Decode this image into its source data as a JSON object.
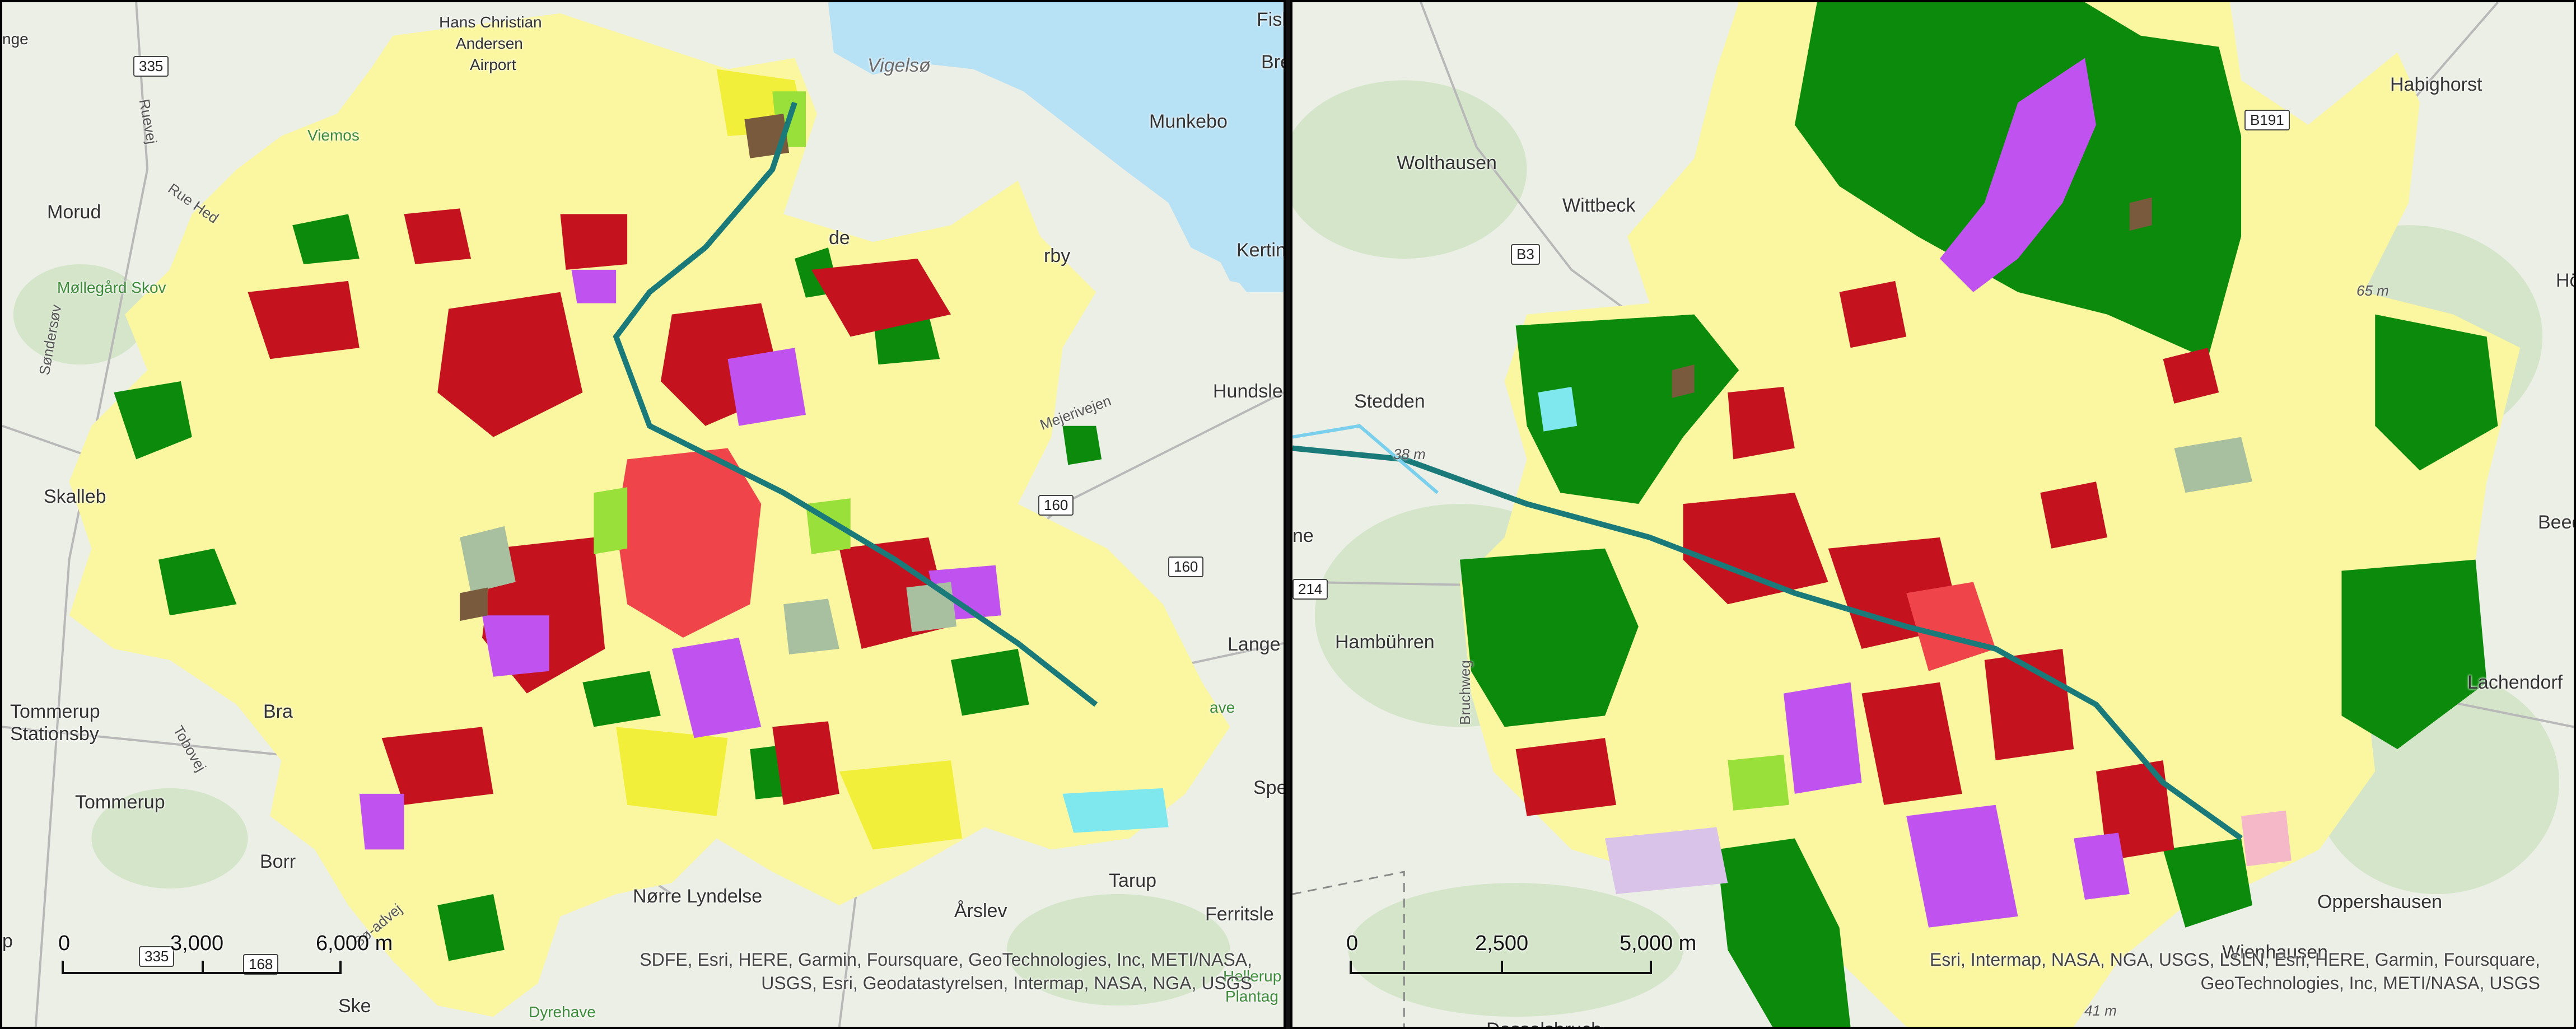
{
  "left_map": {
    "places": {
      "nge": "nge",
      "hca_airport_1": "Hans Christian",
      "hca_airport_2": "Andersen",
      "hca_airport_3": "Airport",
      "vigelso": "Vigelsø",
      "fisk": "Fisk",
      "bre": "Bre",
      "munkebo": "Munkebo",
      "ruevej": "Ruevej",
      "viemose": "Viemos",
      "rue_hed": "Rue Hed",
      "morud": "Morud",
      "kertin": "Kertin",
      "mollegard": "Møllegård Skov",
      "sondersov": "Søndersøv",
      "hundsle": "Hundsle",
      "mejerivejen": "Mejerivejen",
      "skalleb": "Skalleb",
      "lange": "Lange",
      "tommerup_st_1": "Tommerup",
      "tommerup_st_2": "Stationsby",
      "tobovej": "Tobovej",
      "bra": "Bra",
      "tommerup": "Tommerup",
      "borr": "Borr",
      "spendru": "Spendru",
      "tarup": "Tarup",
      "ferritsle": "Ferritsle",
      "norre_lyndelse": "Nørre Lyndelse",
      "arslev": "Årslev",
      "dyrehave": "Dyrehave",
      "ske": "Ske",
      "hellerup": "Hellerup",
      "plantag": "Plantag",
      "sosadvej": "Sø-advej",
      "de": "de",
      "rby": "rby",
      "ave": "ave",
      "p": "p"
    },
    "shields": {
      "r335a": "335",
      "r160a": "160",
      "r160b": "160",
      "r335b": "335",
      "r168": "168"
    },
    "scale": {
      "t0": "0",
      "t1": "3,000",
      "t2": "6,000 m"
    },
    "attribution": {
      "line1": "SDFE, Esri, HERE, Garmin, Foursquare, GeoTechnologies, Inc, METI/NASA,",
      "line2": "USGS, Esri, Geodatastyrelsen, Intermap, NASA, NGA, USGS"
    }
  },
  "right_map": {
    "places": {
      "habighorst": "Habighorst",
      "wolthausen": "Wolthausen",
      "wittbeck": "Wittbeck",
      "hofe": "Höfe",
      "stedden": "Stedden",
      "ne": "ne",
      "beeden": "Beeden",
      "hambuhren": "Hambühren",
      "lachendorf": "Lachendorf",
      "bruchweg": "Bruchweg",
      "oppershausen": "Oppershausen",
      "wienhausen": "Wienhausen",
      "dasselsbruch": "Dasselsbruch"
    },
    "shields": {
      "b3": "B3",
      "b191": "B191",
      "r214": "214"
    },
    "elevations": {
      "e65": "65 m",
      "e38": "38 m",
      "e41": "41 m"
    },
    "scale": {
      "t0": "0",
      "t1": "2,500",
      "t2": "5,000 m"
    },
    "attribution": {
      "line1": "Esri, Intermap, NASA, NGA, USGS, LSLN, Esri, HERE, Garmin, Foursquare,",
      "line2": "GeoTechnologies, Inc, METI/NASA, USGS"
    }
  },
  "colors": {
    "basemap": "#ecefe6",
    "water": "#b7e1f5",
    "forest_basemap": "#d4e5c9",
    "yellow_light": "#fbf7a0",
    "yellow": "#f2ef3a",
    "red_dark": "#c4121f",
    "red": "#f0444b",
    "purple": "#c053f0",
    "green_dark": "#0b8a0b",
    "green_light": "#99e03a",
    "gray_green": "#a8c0a0",
    "pink": "#f4b8c9",
    "lilac": "#d9c3e8",
    "brown": "#7a5a3c",
    "cyan": "#7fe8ee"
  }
}
